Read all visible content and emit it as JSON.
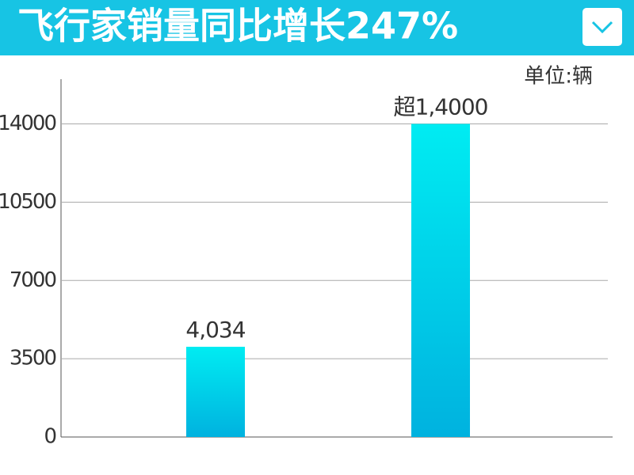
{
  "chart_data": {
    "type": "bar",
    "title": "飞行家销量同比增长247%",
    "unit": "单位:辆",
    "categories": [
      null,
      null
    ],
    "values": [
      4034,
      14000
    ],
    "value_labels": [
      "4,034",
      "超1,4000"
    ],
    "ylim": [
      0,
      16000
    ],
    "yticks": [
      0,
      3500,
      7000,
      10500,
      14000
    ],
    "grid": true
  }
}
